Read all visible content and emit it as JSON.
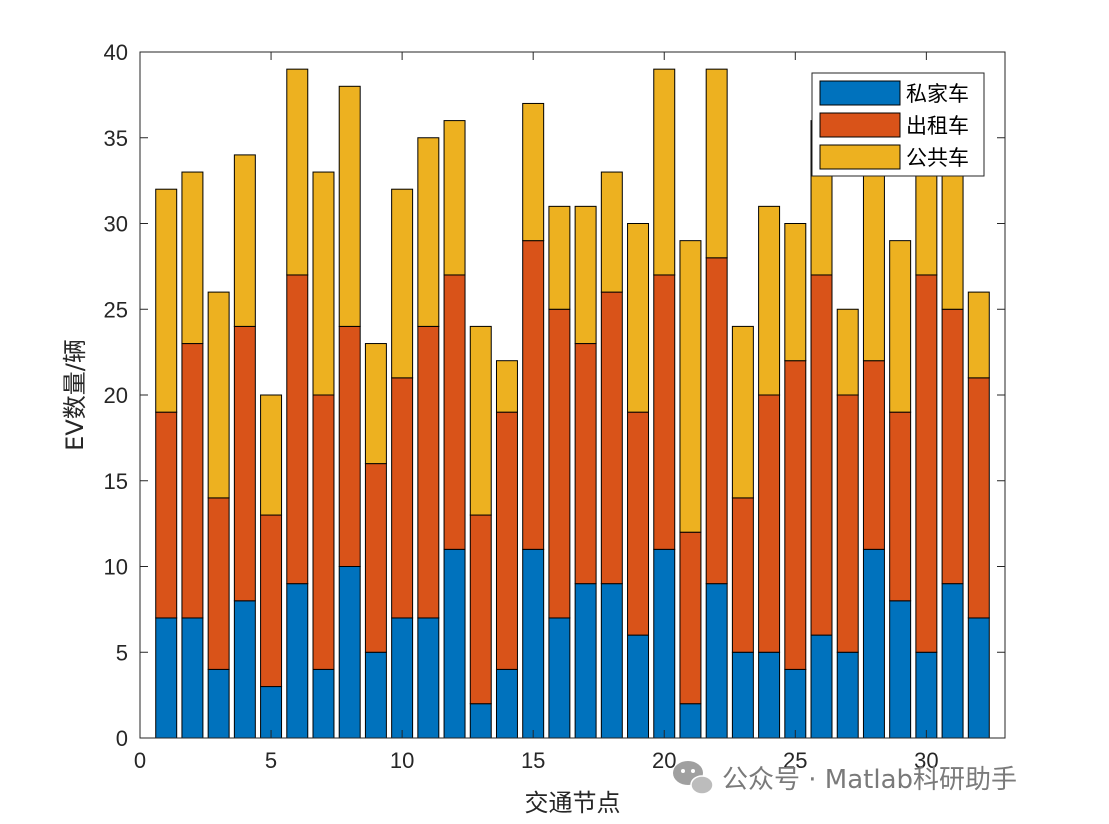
{
  "chart_data": {
    "type": "bar",
    "stacked": true,
    "xlabel": "交通节点",
    "ylabel": "EV数量/辆",
    "xlim": [
      0,
      33
    ],
    "ylim": [
      0,
      40
    ],
    "xticks": [
      0,
      5,
      10,
      15,
      20,
      25,
      30
    ],
    "yticks": [
      0,
      5,
      10,
      15,
      20,
      25,
      30,
      35,
      40
    ],
    "grid": false,
    "legend_position": "top-right",
    "x": [
      1,
      2,
      3,
      4,
      5,
      6,
      7,
      8,
      9,
      10,
      11,
      12,
      13,
      14,
      15,
      16,
      17,
      18,
      19,
      20,
      21,
      22,
      23,
      24,
      25,
      26,
      27,
      28,
      29,
      30,
      31,
      32
    ],
    "series": [
      {
        "name": "私家车",
        "color": "#0072BD",
        "values": [
          7,
          7,
          4,
          8,
          3,
          9,
          4,
          10,
          5,
          7,
          7,
          11,
          2,
          4,
          11,
          7,
          9,
          9,
          6,
          11,
          2,
          9,
          5,
          5,
          4,
          6,
          5,
          11,
          8,
          5,
          9,
          7
        ]
      },
      {
        "name": "出租车",
        "color": "#D95319",
        "values": [
          12,
          16,
          10,
          16,
          10,
          18,
          16,
          14,
          11,
          14,
          17,
          16,
          11,
          15,
          18,
          18,
          14,
          17,
          13,
          16,
          10,
          19,
          9,
          15,
          18,
          21,
          15,
          11,
          11,
          22,
          16,
          14
        ]
      },
      {
        "name": "公共车",
        "color": "#EDB120",
        "values": [
          13,
          10,
          12,
          10,
          7,
          12,
          13,
          14,
          7,
          11,
          11,
          9,
          11,
          3,
          8,
          6,
          8,
          7,
          11,
          12,
          17,
          11,
          10,
          11,
          8,
          9,
          5,
          13,
          10,
          6,
          8,
          5
        ]
      }
    ]
  },
  "watermark": {
    "icon": "wechat-icon",
    "text": "公众号 · Matlab科研助手"
  }
}
